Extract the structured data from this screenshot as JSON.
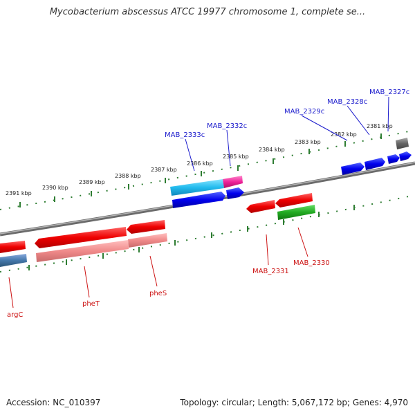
{
  "title": "Mycobacterium abscessus ATCC 19977 chromosome 1, complete se...",
  "footer": {
    "accession": "Accession: NC_010397",
    "topology": "Topology: circular; Length: 5,067,172 bp; Genes: 4,970"
  },
  "scale_ticks": [
    "2391 kbp",
    "2390 kbp",
    "2389 kbp",
    "2388 kbp",
    "2387 kbp",
    "2386 kbp",
    "2385 kbp",
    "2384 kbp",
    "2383 kbp",
    "2382 kbp",
    "2381 kbp"
  ],
  "gene_labels": {
    "forward": [
      "MAB_2333c",
      "MAB_2332c",
      "MAB_2329c",
      "MAB_2328c",
      "MAB_2327c"
    ],
    "reverse": [
      "argC",
      "pheT",
      "pheS",
      "MAB_2331",
      "MAB_2330"
    ]
  },
  "colors": {
    "forward_label": "#1a1acc",
    "reverse_label": "#cc1111",
    "backbone": "#888888",
    "tick": "#2e7d32"
  }
}
